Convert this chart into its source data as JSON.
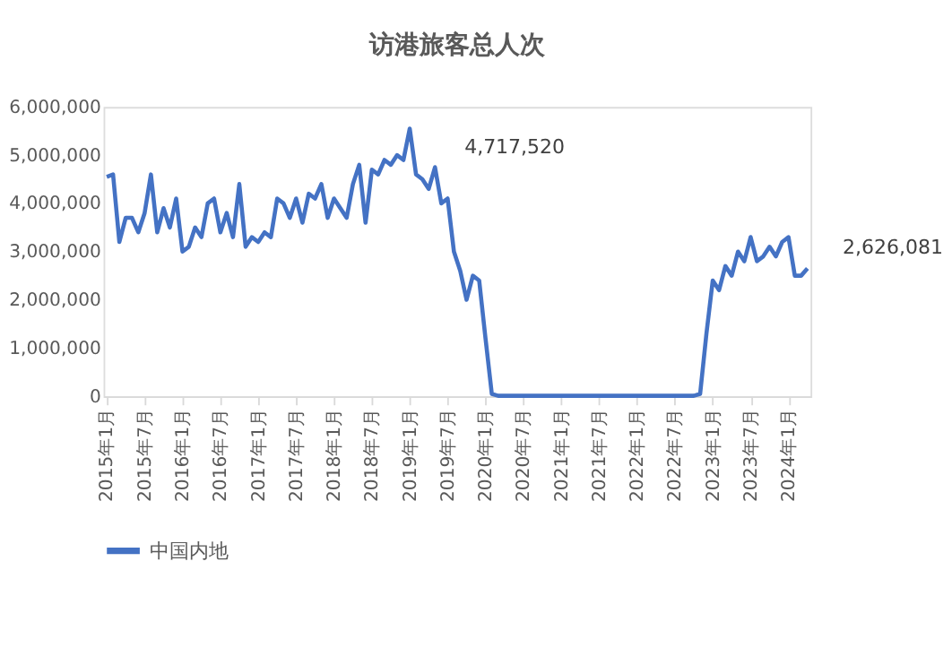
{
  "chart_data": {
    "type": "line",
    "title": "访港旅客总人次",
    "categories": [
      "2015年1月",
      null,
      null,
      null,
      null,
      null,
      "2015年7月",
      null,
      null,
      null,
      null,
      null,
      "2016年1月",
      null,
      null,
      null,
      null,
      null,
      "2016年7月",
      null,
      null,
      null,
      null,
      null,
      "2017年1月",
      null,
      null,
      null,
      null,
      null,
      "2017年7月",
      null,
      null,
      null,
      null,
      null,
      "2018年1月",
      null,
      null,
      null,
      null,
      null,
      "2018年7月",
      null,
      null,
      null,
      null,
      null,
      "2019年1月",
      null,
      null,
      null,
      null,
      null,
      "2019年7月",
      null,
      null,
      null,
      null,
      null,
      "2020年1月",
      null,
      null,
      null,
      null,
      null,
      "2020年7月",
      null,
      null,
      null,
      null,
      null,
      "2021年1月",
      null,
      null,
      null,
      null,
      null,
      "2021年7月",
      null,
      null,
      null,
      null,
      null,
      "2022年1月",
      null,
      null,
      null,
      null,
      null,
      "2022年7月",
      null,
      null,
      null,
      null,
      null,
      "2023年1月",
      null,
      null,
      null,
      null,
      null,
      "2023年7月",
      null,
      null,
      null,
      null,
      null,
      "2024年1月",
      null,
      null,
      null
    ],
    "series": [
      {
        "name": "中国内地",
        "color": "#4472c4",
        "values": [
          4550000,
          4600000,
          3200000,
          3700000,
          3700000,
          3400000,
          3800000,
          4600000,
          3400000,
          3900000,
          3500000,
          4100000,
          3000000,
          3100000,
          3500000,
          3300000,
          4000000,
          4100000,
          3400000,
          3800000,
          3300000,
          4400000,
          3100000,
          3300000,
          3200000,
          3400000,
          3300000,
          4100000,
          4000000,
          3700000,
          4100000,
          3600000,
          4200000,
          4100000,
          4400000,
          3700000,
          4100000,
          3900000,
          3700000,
          4400000,
          4800000,
          3600000,
          4700000,
          4600000,
          4900000,
          4800000,
          5000000,
          4900000,
          5550000,
          4600000,
          4500000,
          4300000,
          4750000,
          4000000,
          4100000,
          3000000,
          2600000,
          2000000,
          2500000,
          2400000,
          1200000,
          50000,
          10000,
          10000,
          10000,
          10000,
          10000,
          10000,
          10000,
          10000,
          10000,
          10000,
          10000,
          10000,
          10000,
          10000,
          10000,
          10000,
          10000,
          10000,
          10000,
          10000,
          10000,
          10000,
          10000,
          10000,
          10000,
          10000,
          10000,
          10000,
          10000,
          10000,
          10000,
          10000,
          50000,
          1300000,
          2400000,
          2200000,
          2700000,
          2500000,
          3000000,
          2800000,
          3300000,
          2800000,
          2900000,
          3100000,
          2900000,
          3200000,
          3300000,
          2500000,
          2500000,
          2650000
        ]
      }
    ],
    "ylim": [
      0,
      6000000
    ],
    "yticks": [
      {
        "value": 0,
        "label": "0"
      },
      {
        "value": 1000000,
        "label": "1,000,000"
      },
      {
        "value": 2000000,
        "label": "2,000,000"
      },
      {
        "value": 3000000,
        "label": "3,000,000"
      },
      {
        "value": 4000000,
        "label": "4,000,000"
      },
      {
        "value": 5000000,
        "label": "5,000,000"
      },
      {
        "value": 6000000,
        "label": "6,000,000"
      }
    ],
    "annotations": [
      "4,717,520",
      "2,626,081"
    ],
    "grid": false,
    "legend": "bottom",
    "marker": "none",
    "line_style": "solid"
  }
}
